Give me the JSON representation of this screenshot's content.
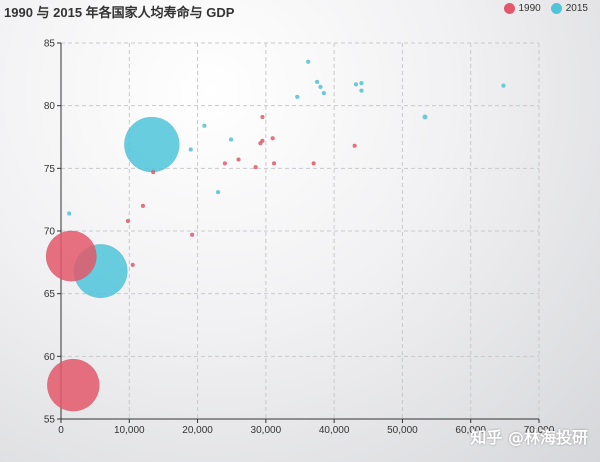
{
  "chart_data": {
    "type": "scatter",
    "title": "1990 与 2015 年各国家人均寿命与 GDP",
    "xlabel": "",
    "ylabel": "",
    "xlim": [
      0,
      70000
    ],
    "ylim": [
      55,
      85
    ],
    "x_ticks": [
      0,
      10000,
      20000,
      30000,
      40000,
      50000,
      60000,
      70000
    ],
    "x_tick_labels": [
      "0",
      "10,000",
      "20,000",
      "30,000",
      "40,000",
      "50,000",
      "60,000",
      "70,000"
    ],
    "y_ticks": [
      55,
      60,
      65,
      70,
      75,
      80,
      85
    ],
    "grid": true,
    "legend_position": "top-right",
    "series": [
      {
        "name": "1990",
        "color": "#e3586a",
        "points": [
          [
            1800,
            57.7,
            1230
          ],
          [
            1500,
            68.0,
            1150
          ],
          [
            13500,
            74.7,
            2
          ],
          [
            10500,
            67.3,
            1
          ],
          [
            9800,
            70.8,
            1
          ],
          [
            12000,
            72.0,
            1
          ],
          [
            19200,
            69.7,
            3
          ],
          [
            24000,
            75.4,
            0.1
          ],
          [
            26000,
            75.7,
            1
          ],
          [
            28500,
            75.1,
            0.1
          ],
          [
            29200,
            77.0,
            1
          ],
          [
            29500,
            77.2,
            1
          ],
          [
            29500,
            79.1,
            3
          ],
          [
            31000,
            77.4,
            0.5
          ],
          [
            31200,
            75.4,
            1.5
          ],
          [
            37000,
            75.4,
            6
          ],
          [
            43000,
            76.8,
            0.1
          ]
        ]
      },
      {
        "name": "2015",
        "color": "#4ec4d9",
        "points": [
          [
            1200,
            71.4,
            1
          ],
          [
            5800,
            66.8,
            1300
          ],
          [
            13300,
            76.9,
            1370
          ],
          [
            19000,
            76.5,
            2
          ],
          [
            21000,
            78.4,
            0.1
          ],
          [
            23000,
            73.1,
            5
          ],
          [
            24900,
            77.3,
            1
          ],
          [
            34600,
            80.7,
            1
          ],
          [
            36200,
            83.5,
            4.5
          ],
          [
            37500,
            81.9,
            2
          ],
          [
            38000,
            81.5,
            2
          ],
          [
            38500,
            81.0,
            0.1
          ],
          [
            43200,
            81.7,
            1
          ],
          [
            44000,
            81.8,
            0.5
          ],
          [
            44000,
            81.2,
            2
          ],
          [
            53300,
            79.1,
            10
          ],
          [
            64800,
            81.6,
            0.1
          ]
        ]
      }
    ]
  },
  "watermark": "知乎 @林海投研"
}
